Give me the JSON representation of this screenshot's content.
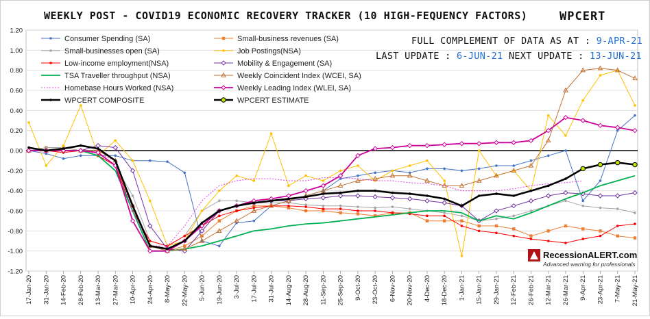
{
  "header": {
    "title": "WEEKLY POST - COVID19 ECONOMIC RECOVERY TRACKER (10 HIGH-FEQUENCY FACTORS)",
    "brand": "WPCERT"
  },
  "info": {
    "full_label": "FULL COMPLEMENT OF DATA AS AT : ",
    "full_value": "9-APR-21",
    "last_label": "LAST UPDATE : ",
    "last_value": "6-JUN-21",
    "next_label": "NEXT UPDATE : ",
    "next_value": "13-JUN-21",
    "value_color": "#1f6fd6"
  },
  "watermark": {
    "name": "RecessionALERT.com",
    "tagline": "Advanced warning for professionals"
  },
  "chart_data": {
    "type": "line",
    "ylim": [
      -1.2,
      1.2
    ],
    "yticks": [
      "1.20",
      "1.00",
      "0.80",
      "0.60",
      "0.40",
      "0.20",
      "0.00",
      "-0.20",
      "-0.40",
      "-0.60",
      "-0.80",
      "-1.00",
      "-1.20"
    ],
    "xticks": [
      "17-Jan-20",
      "31-Jan-20",
      "14-Feb-20",
      "28-Feb-20",
      "13-Mar-20",
      "27-Mar-20",
      "10-Apr-20",
      "24-Apr-20",
      "8-May-20",
      "22-May-20",
      "5-Jun-20",
      "19-Jun-20",
      "3-Jul-20",
      "17-Jul-20",
      "31-Jul-20",
      "14-Aug-20",
      "28-Aug-20",
      "11-Sep-20",
      "25-Sep-20",
      "9-Oct-20",
      "23-Oct-20",
      "6-Nov-20",
      "20-Nov-20",
      "4-Dec-20",
      "18-Dec-20",
      "1-Jan-21",
      "15-Jan-21",
      "29-Jan-21",
      "12-Feb-21",
      "26-Feb-21",
      "12-Mar-21",
      "26-Mar-21",
      "9-Apr-21",
      "23-Apr-21",
      "7-May-21",
      "21-May-21"
    ],
    "series": [
      {
        "name": "Consumer Spending (SA)",
        "color": "#4472c4",
        "marker": "dot",
        "values": [
          0.0,
          -0.03,
          -0.08,
          -0.05,
          -0.05,
          -0.05,
          -0.1,
          -0.1,
          -0.11,
          -0.22,
          -0.9,
          -0.95,
          -0.72,
          -0.7,
          -0.55,
          -0.5,
          -0.45,
          -0.4,
          -0.28,
          -0.25,
          -0.22,
          -0.2,
          -0.22,
          -0.18,
          -0.18,
          -0.2,
          -0.18,
          -0.15,
          -0.15,
          -0.1,
          -0.05,
          0.0,
          -0.5,
          -0.3,
          0.2,
          0.35
        ]
      },
      {
        "name": "Small-business revenues (SA)",
        "color": "#ed7d31",
        "marker": "square",
        "values": [
          0.0,
          0.03,
          0.03,
          0.0,
          -0.05,
          -0.15,
          -0.55,
          -0.95,
          -1.0,
          -0.95,
          -0.85,
          -0.7,
          -0.6,
          -0.55,
          -0.55,
          -0.57,
          -0.6,
          -0.6,
          -0.62,
          -0.63,
          -0.65,
          -0.62,
          -0.62,
          -0.7,
          -0.7,
          -0.7,
          -0.75,
          -0.75,
          -0.78,
          -0.85,
          -0.8,
          -0.75,
          -0.78,
          -0.8,
          -0.85,
          -0.87
        ]
      },
      {
        "name": "Small-businesses open (SA)",
        "color": "#a5a5a5",
        "marker": "dot",
        "values": [
          0.0,
          0.03,
          0.03,
          0.0,
          -0.05,
          -0.15,
          -0.45,
          -0.9,
          -0.95,
          -0.85,
          -0.6,
          -0.5,
          -0.5,
          -0.52,
          -0.52,
          -0.52,
          -0.54,
          -0.55,
          -0.55,
          -0.56,
          -0.57,
          -0.56,
          -0.58,
          -0.6,
          -0.62,
          -0.65,
          -0.7,
          -0.68,
          -0.65,
          -0.6,
          -0.55,
          -0.5,
          -0.55,
          -0.57,
          -0.58,
          -0.62
        ]
      },
      {
        "name": "Job Postings(NSA)",
        "color": "#ffc000",
        "marker": "dot",
        "values": [
          0.28,
          -0.15,
          0.05,
          0.45,
          -0.05,
          0.1,
          -0.1,
          -0.5,
          -0.95,
          -0.9,
          -0.6,
          -0.4,
          -0.25,
          -0.3,
          0.17,
          -0.35,
          -0.25,
          -0.3,
          -0.2,
          -0.15,
          -0.3,
          -0.2,
          -0.15,
          -0.1,
          -0.3,
          -1.05,
          0.0,
          -0.25,
          -0.2,
          -0.4,
          0.35,
          0.15,
          0.5,
          0.75,
          0.8,
          0.45
        ]
      },
      {
        "name": "Low-income employment(NSA)",
        "color": "#ff0000",
        "marker": "dot",
        "values": [
          0.0,
          0.0,
          -0.02,
          0.0,
          -0.05,
          -0.15,
          -0.6,
          -0.9,
          -0.95,
          -0.85,
          -0.75,
          -0.65,
          -0.6,
          -0.57,
          -0.55,
          -0.55,
          -0.56,
          -0.58,
          -0.58,
          -0.6,
          -0.6,
          -0.62,
          -0.63,
          -0.65,
          -0.65,
          -0.75,
          -0.8,
          -0.82,
          -0.85,
          -0.88,
          -0.9,
          -0.92,
          -0.88,
          -0.85,
          -0.75,
          -0.73
        ]
      },
      {
        "name": "Mobility & Engagement (SA)",
        "color": "#7030a0",
        "marker": "diamond",
        "values": [
          0.0,
          0.0,
          0.0,
          0.0,
          0.05,
          0.03,
          -0.2,
          -0.75,
          -0.98,
          -1.0,
          -0.8,
          -0.6,
          -0.55,
          -0.52,
          -0.5,
          -0.5,
          -0.48,
          -0.47,
          -0.45,
          -0.45,
          -0.46,
          -0.47,
          -0.48,
          -0.5,
          -0.52,
          -0.55,
          -0.7,
          -0.6,
          -0.55,
          -0.5,
          -0.45,
          -0.42,
          -0.43,
          -0.45,
          -0.45,
          -0.42
        ]
      },
      {
        "name": "TSA Traveller throughput (NSA)",
        "color": "#00b050",
        "marker": "none",
        "values": [
          0.0,
          0.0,
          0.0,
          0.0,
          -0.05,
          -0.2,
          -0.6,
          -1.0,
          -1.0,
          -0.98,
          -0.95,
          -0.9,
          -0.85,
          -0.8,
          -0.78,
          -0.75,
          -0.73,
          -0.72,
          -0.7,
          -0.68,
          -0.66,
          -0.64,
          -0.62,
          -0.6,
          -0.6,
          -0.62,
          -0.7,
          -0.65,
          -0.68,
          -0.62,
          -0.55,
          -0.48,
          -0.42,
          -0.35,
          -0.3,
          -0.25
        ]
      },
      {
        "name": "Weekly Coincident Index (WCEI, SA)",
        "color": "#c07030",
        "marker": "triangle",
        "values": [
          0.0,
          0.0,
          0.0,
          0.0,
          0.0,
          -0.1,
          -0.55,
          -0.95,
          -1.0,
          -0.98,
          -0.9,
          -0.8,
          -0.7,
          -0.6,
          -0.55,
          -0.5,
          -0.45,
          -0.4,
          -0.35,
          -0.3,
          -0.28,
          -0.25,
          -0.25,
          -0.3,
          -0.35,
          -0.35,
          -0.3,
          -0.25,
          -0.2,
          -0.15,
          0.1,
          0.6,
          0.8,
          0.82,
          0.8,
          0.72
        ]
      },
      {
        "name": "Homebase Hours Worked (NSA)",
        "color": "#e040e0",
        "marker": "none",
        "values": [
          0.0,
          0.0,
          0.0,
          0.0,
          -0.03,
          -0.1,
          -0.6,
          -0.95,
          -0.95,
          -0.75,
          -0.5,
          -0.35,
          -0.3,
          -0.28,
          -0.28,
          -0.3,
          -0.3,
          -0.27,
          -0.27,
          -0.28,
          -0.3,
          -0.3,
          -0.32,
          -0.33,
          -0.35,
          -0.4,
          -0.4,
          -0.4,
          -0.38,
          -0.35,
          -0.33,
          -0.32,
          -0.3,
          null,
          null,
          null
        ]
      },
      {
        "name": "Weekly Leading Index (WLEI, SA)",
        "color": "#cc0099",
        "marker": "diamond",
        "values": [
          0.0,
          0.0,
          0.0,
          0.0,
          -0.02,
          -0.15,
          -0.7,
          -1.0,
          -1.0,
          -0.9,
          -0.75,
          -0.6,
          -0.55,
          -0.5,
          -0.48,
          -0.45,
          -0.4,
          -0.35,
          -0.25,
          -0.05,
          0.02,
          0.03,
          0.05,
          0.05,
          0.06,
          0.07,
          0.07,
          0.08,
          0.08,
          0.1,
          0.2,
          0.33,
          0.3,
          0.25,
          0.23,
          0.2
        ]
      },
      {
        "name": "WPCERT COMPOSITE",
        "color": "#000000",
        "marker": "dot",
        "values": [
          0.03,
          0.0,
          0.02,
          0.05,
          0.02,
          -0.1,
          -0.55,
          -0.95,
          -0.98,
          -0.9,
          -0.72,
          -0.6,
          -0.55,
          -0.52,
          -0.5,
          -0.48,
          -0.46,
          -0.43,
          -0.42,
          -0.4,
          -0.4,
          -0.42,
          -0.43,
          -0.45,
          -0.48,
          -0.55,
          -0.45,
          -0.43,
          -0.45,
          -0.4,
          -0.35,
          -0.28,
          -0.18,
          null,
          null,
          null
        ]
      },
      {
        "name": "WPCERT ESTIMATE",
        "color": "#c6e000",
        "marker": "dot-outline",
        "values": [
          null,
          null,
          null,
          null,
          null,
          null,
          null,
          null,
          null,
          null,
          null,
          null,
          null,
          null,
          null,
          null,
          null,
          null,
          null,
          null,
          null,
          null,
          null,
          null,
          null,
          null,
          null,
          null,
          null,
          null,
          null,
          null,
          -0.18,
          -0.14,
          -0.12,
          -0.14
        ]
      }
    ]
  }
}
